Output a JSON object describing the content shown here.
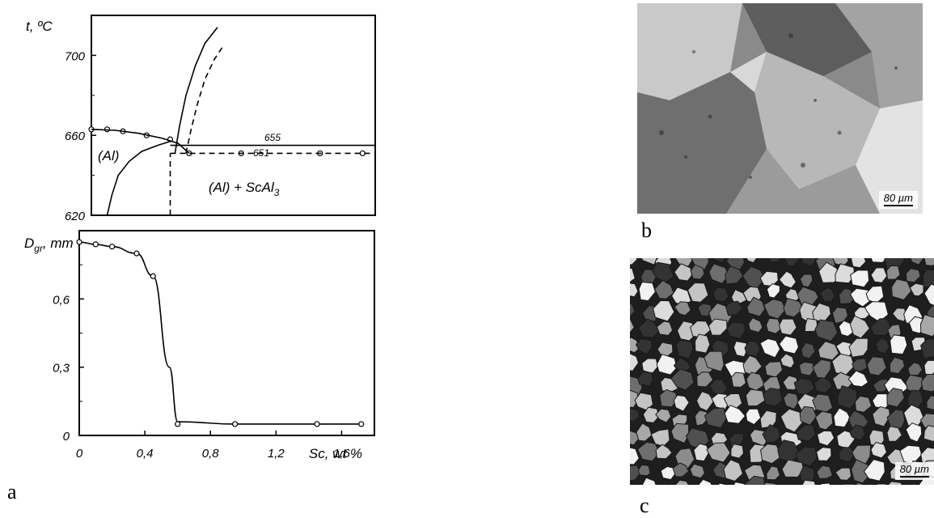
{
  "figure": {
    "panel_labels": {
      "a": "a",
      "b": "b",
      "c": "c"
    }
  },
  "chart_data": [
    {
      "type": "line",
      "panel": "a-top",
      "ylabel": "t, ºC",
      "ylim": [
        620,
        720
      ],
      "xlim": [
        0,
        1.8
      ],
      "y_ticks": [
        620,
        660,
        700
      ],
      "y_tick_labels": [
        "620",
        "660",
        "700"
      ],
      "annotations": {
        "eutectic_1": "655",
        "eutectic_2": "651",
        "region_al": "(Al)",
        "region_two_phase_prefix": "(Al) + ScAl",
        "region_two_phase_subscript": "3"
      },
      "series": [
        {
          "role": "measured-points",
          "x": [
            0.0,
            0.1,
            0.2,
            0.35,
            0.5,
            0.62,
            0.95,
            1.45,
            1.72
          ],
          "y": [
            663,
            663,
            662,
            660,
            658,
            651,
            651,
            651,
            651
          ]
        },
        {
          "role": "liquidus-aluminium-side",
          "x": [
            0.0,
            0.15,
            0.3,
            0.45,
            0.55,
            0.62
          ],
          "y": [
            663,
            662.5,
            661,
            658.5,
            656,
            651
          ]
        },
        {
          "role": "liquidus-ScAl3-side",
          "x": [
            0.53,
            0.56,
            0.6,
            0.66,
            0.72,
            0.8
          ],
          "y": [
            651,
            665,
            680,
            695,
            706,
            714
          ]
        },
        {
          "role": "liquidus-ScAl3-side-dashed",
          "x": [
            0.6,
            0.63,
            0.67,
            0.72,
            0.78,
            0.83
          ],
          "y": [
            651,
            662,
            675,
            688,
            698,
            704
          ]
        },
        {
          "role": "solvus",
          "x": [
            0.1,
            0.13,
            0.17,
            0.24,
            0.32,
            0.42,
            0.5
          ],
          "y": [
            620,
            630,
            640,
            647,
            652,
            655,
            657
          ]
        },
        {
          "role": "eutectic-655",
          "x": [
            0.5,
            1.8
          ],
          "y": [
            655,
            655
          ]
        },
        {
          "role": "eutectic-651-dashed",
          "x": [
            0.5,
            1.78
          ],
          "y": [
            651,
            651
          ]
        },
        {
          "role": "vertical-dashed",
          "x": [
            0.5,
            0.5
          ],
          "y": [
            620,
            651
          ]
        }
      ]
    },
    {
      "type": "line",
      "panel": "a-bottom",
      "ylabel": "D",
      "ylabel_subscript": "gr",
      "ylabel_suffix": ", mm",
      "xlabel": "Sc, wt %",
      "xlim": [
        0,
        1.8
      ],
      "ylim": [
        0,
        0.9
      ],
      "x_ticks": [
        0,
        0.4,
        0.8,
        1.2,
        1.6
      ],
      "x_tick_labels": [
        "0",
        "0,4",
        "0,8",
        "1,2",
        "1,6"
      ],
      "y_ticks": [
        0,
        0.3,
        0.6
      ],
      "y_tick_labels": [
        "0",
        "0,3",
        "0,6"
      ],
      "series": [
        {
          "role": "grain-size",
          "x": [
            0.0,
            0.1,
            0.2,
            0.35,
            0.45,
            0.55,
            0.6,
            0.95,
            1.45,
            1.72
          ],
          "y": [
            0.85,
            0.84,
            0.83,
            0.8,
            0.7,
            0.3,
            0.06,
            0.05,
            0.05,
            0.05
          ]
        },
        {
          "role": "measured-points",
          "x": [
            0.0,
            0.1,
            0.2,
            0.35,
            0.45,
            0.6,
            0.95,
            1.45,
            1.72
          ],
          "y": [
            0.85,
            0.84,
            0.83,
            0.8,
            0.7,
            0.05,
            0.05,
            0.05,
            0.05
          ]
        }
      ]
    }
  ],
  "micrographs": {
    "b": {
      "scale_label": "80 µm"
    },
    "c": {
      "scale_label": "80 µm"
    }
  }
}
